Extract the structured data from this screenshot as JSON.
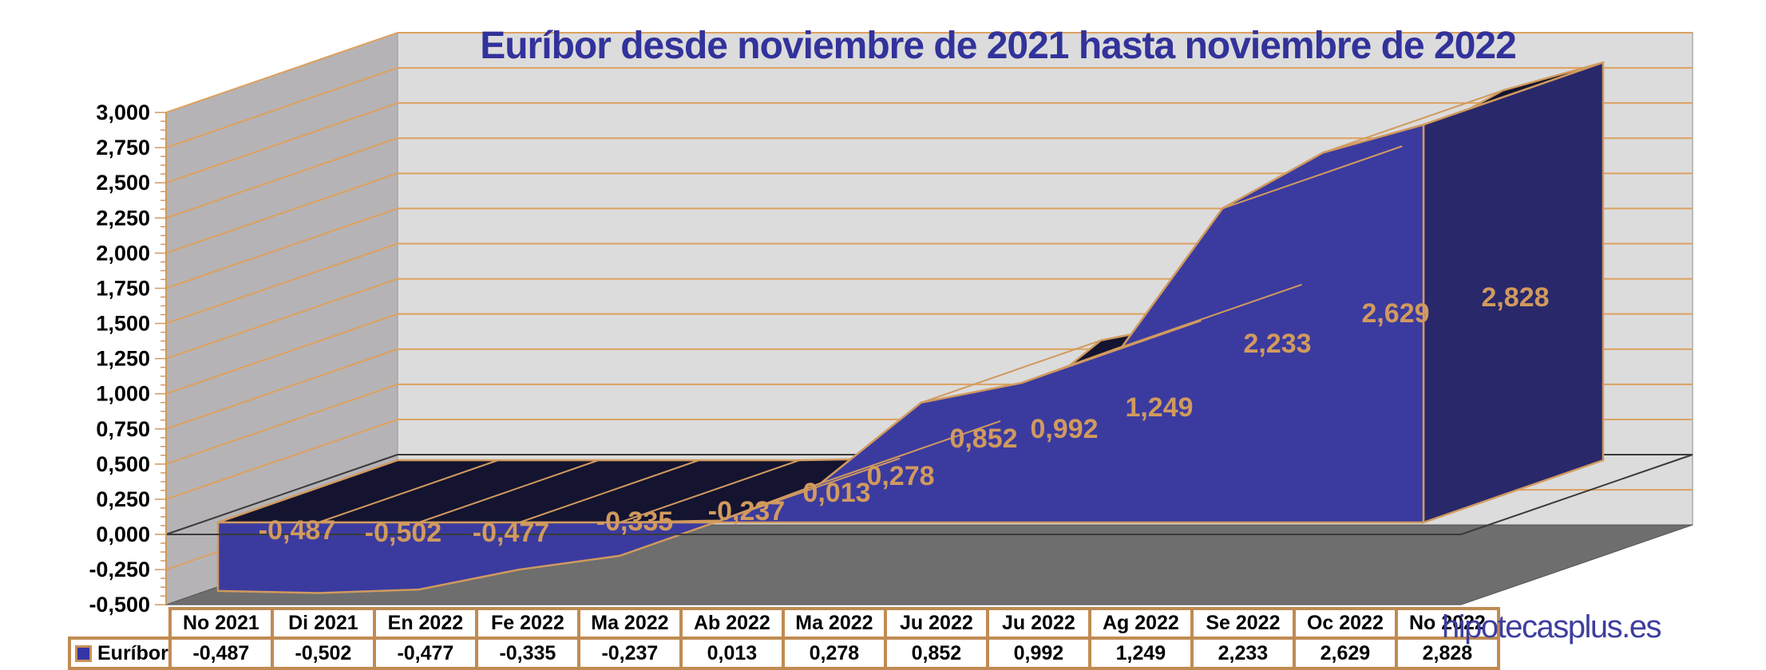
{
  "header": {
    "title": "Euríbor desde noviembre de 2021 hasta noviembre de 2022"
  },
  "watermark": {
    "text": "hipotecasplus.es"
  },
  "legend": {
    "label": "Euríbor",
    "marker_color": "#3434a4"
  },
  "y_axis": {
    "tick_labels": [
      "3,000",
      "2,750",
      "2,500",
      "2,250",
      "2,000",
      "1,750",
      "1,500",
      "1,250",
      "1,000",
      "0,750",
      "0,500",
      "0,250",
      "0,000",
      "-0,250",
      "-0,500"
    ]
  },
  "chart_data": {
    "type": "area",
    "projection": "3d-perspective",
    "title": "Euríbor desde noviembre de 2021 hasta noviembre de 2022",
    "categories": [
      "No 2021",
      "Di 2021",
      "En 2022",
      "Fe 2022",
      "Ma 2022",
      "Ab 2022",
      "Ma 2022",
      "Ju 2022",
      "Ju 2022",
      "Ag 2022",
      "Se 2022",
      "Oc 2022",
      "No 2022"
    ],
    "series": [
      {
        "name": "Euríbor",
        "values": [
          -0.487,
          -0.502,
          -0.477,
          -0.335,
          -0.237,
          0.013,
          0.278,
          0.852,
          0.992,
          1.249,
          2.233,
          2.629,
          2.828
        ],
        "values_formatted": [
          "-0,487",
          "-0,502",
          "-0,477",
          "-0,335",
          "-0,237",
          "0,013",
          "0,278",
          "0,852",
          "0,992",
          "1,249",
          "2,233",
          "2,629",
          "2,828"
        ]
      }
    ],
    "xlabel": "",
    "ylabel": "",
    "ylim": [
      -0.5,
      3.0
    ],
    "y_tick_step": 0.25,
    "grid": true,
    "legend_position": "bottom-table-row",
    "data_labels_shown": true,
    "colors": {
      "area_front": "#3b3b9f",
      "area_top": "#141430",
      "area_right_side": "#28286b",
      "series_outline": "#d19a5e",
      "gridline": "#dda15e",
      "zero_line": "#3a3a3a",
      "left_wall": "#b6b3b6",
      "back_wall": "#dcdcdc",
      "floor": "#6e6e6e",
      "title_text": "#32329b",
      "data_label_text": "#d19a5e",
      "axis_label_text": "#000000",
      "watermark_text": "#3e3e9f",
      "table_border": "#c08b52"
    }
  },
  "table": {
    "row_header": "Euríbor"
  }
}
